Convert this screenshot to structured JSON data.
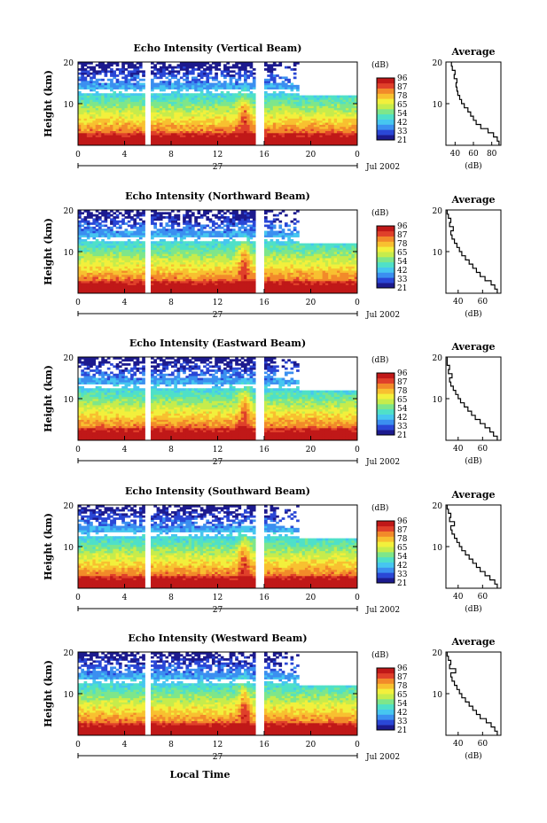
{
  "figure": {
    "xlabel": "Local Time",
    "date_label": "Jul 2002",
    "day_label": "27",
    "colorbar_label": "(dB)",
    "colorbar_ticks": [
      "96",
      "87",
      "78",
      "65",
      "54",
      "42",
      "33",
      "21"
    ],
    "profile_title": "Average",
    "profile_xlabel": "(dB)"
  },
  "colors": {
    "scale": [
      "#1c1a8e",
      "#2a47d6",
      "#3b8ff0",
      "#46c6f0",
      "#4fe0c8",
      "#7ee68a",
      "#c6ec4c",
      "#f2f03c",
      "#f8c030",
      "#f28a2a",
      "#e0402a",
      "#c01818"
    ],
    "gap": "#ffffff"
  },
  "chart_data": [
    {
      "type": "heatmap",
      "title": "Echo Intensity (Vertical Beam)",
      "ylabel": "Height (km)",
      "xlim": [
        0,
        24
      ],
      "ylim": [
        0,
        20
      ],
      "xticks": [
        "0",
        "4",
        "8",
        "12",
        "16",
        "20",
        "0"
      ],
      "yticks": [
        "20",
        "10"
      ],
      "colorbar_range": [
        21,
        96
      ],
      "profile": {
        "xlim": [
          30,
          90
        ],
        "xticks": [
          "40",
          "60",
          "80"
        ],
        "heights": [
          1,
          2,
          3,
          4,
          5,
          6,
          7,
          8,
          9,
          10,
          11,
          12,
          13,
          14,
          15,
          16,
          17,
          18,
          19,
          20
        ],
        "values": [
          88,
          86,
          82,
          76,
          68,
          63,
          60,
          57,
          54,
          50,
          47,
          45,
          43,
          42,
          41,
          42,
          39,
          40,
          37,
          36
        ]
      }
    },
    {
      "type": "heatmap",
      "title": "Echo Intensity (Northward Beam)",
      "ylabel": "Height (km)",
      "xlim": [
        0,
        24
      ],
      "ylim": [
        0,
        20
      ],
      "xticks": [
        "0",
        "4",
        "8",
        "12",
        "16",
        "20",
        "0"
      ],
      "yticks": [
        "20",
        "10"
      ],
      "colorbar_range": [
        21,
        96
      ],
      "profile": {
        "xlim": [
          30,
          75
        ],
        "xticks": [
          "40",
          "60"
        ],
        "heights": [
          1,
          2,
          3,
          4,
          5,
          6,
          7,
          8,
          9,
          10,
          11,
          12,
          13,
          14,
          15,
          16,
          17,
          18,
          19,
          20
        ],
        "values": [
          72,
          70,
          67,
          62,
          58,
          55,
          52,
          49,
          46,
          43,
          41,
          39,
          37,
          35,
          34,
          36,
          33,
          34,
          32,
          31
        ]
      }
    },
    {
      "type": "heatmap",
      "title": "Echo Intensity (Eastward Beam)",
      "ylabel": "Height (km)",
      "xlim": [
        0,
        24
      ],
      "ylim": [
        0,
        20
      ],
      "xticks": [
        "0",
        "4",
        "8",
        "12",
        "16",
        "20",
        "0"
      ],
      "yticks": [
        "20",
        "10"
      ],
      "colorbar_range": [
        21,
        96
      ],
      "profile": {
        "xlim": [
          30,
          75
        ],
        "xticks": [
          "40",
          "60"
        ],
        "heights": [
          1,
          2,
          3,
          4,
          5,
          6,
          7,
          8,
          9,
          10,
          11,
          12,
          13,
          14,
          15,
          16,
          17,
          18,
          19,
          20
        ],
        "values": [
          72,
          69,
          66,
          62,
          58,
          54,
          51,
          48,
          45,
          42,
          40,
          38,
          36,
          34,
          33,
          35,
          32,
          33,
          31,
          31
        ]
      }
    },
    {
      "type": "heatmap",
      "title": "Echo Intensity (Southward Beam)",
      "ylabel": "Height (km)",
      "xlim": [
        0,
        24
      ],
      "ylim": [
        0,
        20
      ],
      "xticks": [
        "0",
        "4",
        "8",
        "12",
        "16",
        "20",
        "0"
      ],
      "yticks": [
        "20",
        "10"
      ],
      "colorbar_range": [
        21,
        96
      ],
      "profile": {
        "xlim": [
          30,
          75
        ],
        "xticks": [
          "40",
          "60"
        ],
        "heights": [
          1,
          2,
          3,
          4,
          5,
          6,
          7,
          8,
          9,
          10,
          11,
          12,
          13,
          14,
          15,
          16,
          17,
          18,
          19,
          20
        ],
        "values": [
          72,
          70,
          66,
          62,
          58,
          55,
          52,
          49,
          46,
          43,
          41,
          39,
          37,
          35,
          34,
          37,
          33,
          34,
          32,
          31
        ]
      }
    },
    {
      "type": "heatmap",
      "title": "Echo Intensity (Westward Beam)",
      "ylabel": "Height (km)",
      "xlim": [
        0,
        24
      ],
      "ylim": [
        0,
        20
      ],
      "xticks": [
        "0",
        "4",
        "8",
        "12",
        "16",
        "20",
        "0"
      ],
      "yticks": [
        "20",
        "10"
      ],
      "colorbar_range": [
        21,
        96
      ],
      "profile": {
        "xlim": [
          30,
          75
        ],
        "xticks": [
          "40",
          "60"
        ],
        "heights": [
          1,
          2,
          3,
          4,
          5,
          6,
          7,
          8,
          9,
          10,
          11,
          12,
          13,
          14,
          15,
          16,
          17,
          18,
          19,
          20
        ],
        "values": [
          72,
          70,
          67,
          63,
          58,
          55,
          52,
          49,
          46,
          43,
          41,
          39,
          37,
          35,
          34,
          38,
          33,
          34,
          32,
          31
        ]
      }
    }
  ]
}
